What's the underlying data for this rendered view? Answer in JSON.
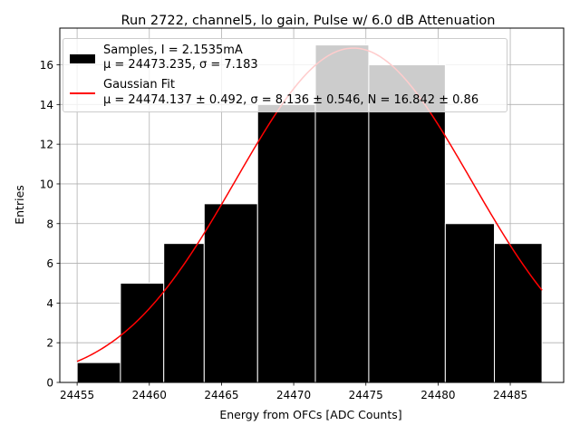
{
  "chart_data": {
    "type": "bar",
    "title": "Run 2722, channel5, lo gain, Pulse w/ 6.0 dB Attenuation",
    "xlabel": "Energy from OFCs [ADC Counts]",
    "ylabel": "Entries",
    "xlim": [
      24453.8,
      24488.7
    ],
    "ylim": [
      0,
      17.85
    ],
    "xticks": [
      24455,
      24460,
      24465,
      24470,
      24475,
      24480,
      24485
    ],
    "yticks": [
      0,
      2,
      4,
      6,
      8,
      10,
      12,
      14,
      16
    ],
    "grid": true,
    "legend_position": "upper left",
    "bins": [
      {
        "x0": 24455.0,
        "x1": 24458.0,
        "count": 1
      },
      {
        "x0": 24458.0,
        "x1": 24461.0,
        "count": 5
      },
      {
        "x0": 24461.0,
        "x1": 24463.8,
        "count": 7
      },
      {
        "x0": 24463.8,
        "x1": 24467.5,
        "count": 9
      },
      {
        "x0": 24467.5,
        "x1": 24471.5,
        "count": 14
      },
      {
        "x0": 24471.5,
        "x1": 24475.2,
        "count": 17
      },
      {
        "x0": 24475.2,
        "x1": 24480.5,
        "count": 16
      },
      {
        "x0": 24480.5,
        "x1": 24483.9,
        "count": 8
      },
      {
        "x0": 24483.9,
        "x1": 24487.2,
        "count": 7
      }
    ],
    "fit": {
      "mu": 24474.137,
      "sigma": 8.136,
      "N": 16.842,
      "x_range": [
        24455.0,
        24487.2
      ]
    },
    "colors": {
      "bars": "#000000",
      "bar_edge": "#ffffff",
      "fit": "#ff0000",
      "grid": "#b0b0b0"
    }
  },
  "legend": {
    "samples_line1": "Samples, I = 2.1535mA",
    "samples_line2": "μ = 24473.235, σ = 7.183",
    "fit_line1": "Gaussian Fit",
    "fit_line2": "μ = 24474.137 ± 0.492, σ = 8.136 ± 0.546, N = 16.842 ± 0.86"
  }
}
